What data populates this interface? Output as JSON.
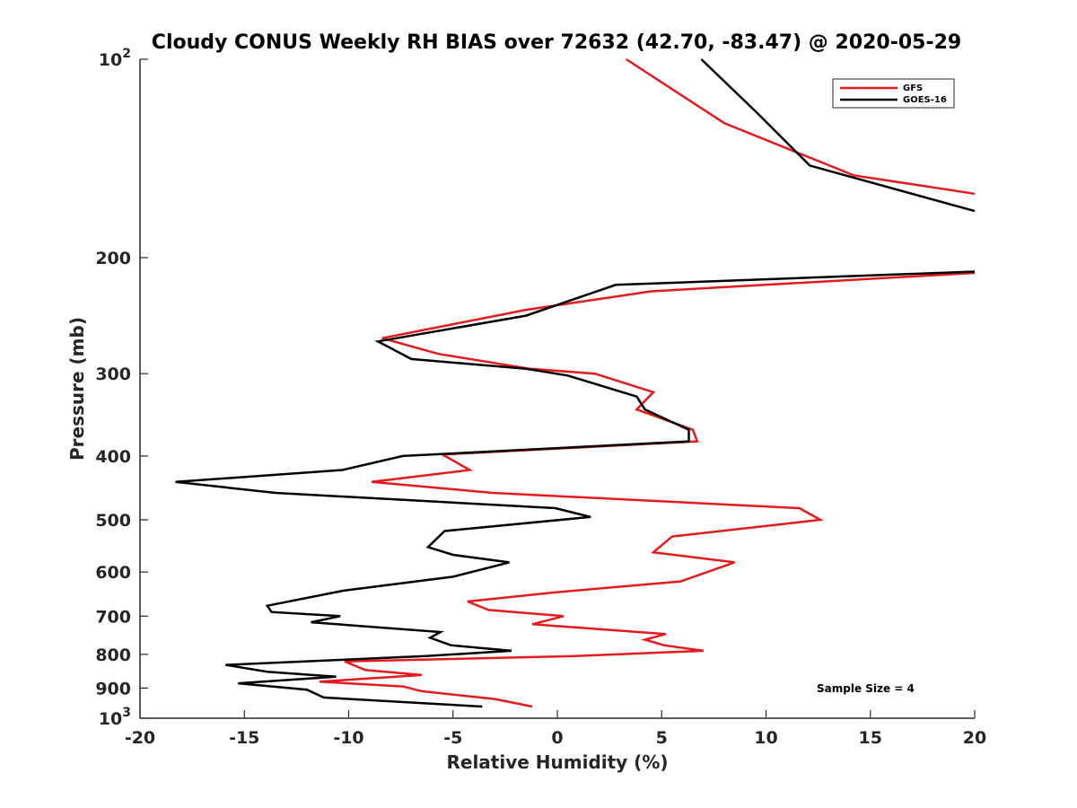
{
  "chart_data": {
    "type": "line",
    "title": "Cloudy CONUS Weekly RH BIAS over 72632 (42.70, -83.47) @ 2020-05-29",
    "xlabel": "Relative Humidity (%)",
    "ylabel": "Pressure (mb)",
    "xlim": [
      -20,
      20
    ],
    "ylim": [
      100,
      1000
    ],
    "y_scale": "log",
    "y_reversed": true,
    "grid": false,
    "legend_position": "top-right",
    "annotation": "Sample Size = 4",
    "x_ticks": [
      {
        "value": -20,
        "label": "-20"
      },
      {
        "value": -15,
        "label": "-15"
      },
      {
        "value": -10,
        "label": "-10"
      },
      {
        "value": -5,
        "label": "-5"
      },
      {
        "value": 0,
        "label": "0"
      },
      {
        "value": 5,
        "label": "5"
      },
      {
        "value": 10,
        "label": "10"
      },
      {
        "value": 15,
        "label": "15"
      },
      {
        "value": 20,
        "label": "20"
      }
    ],
    "y_ticks": [
      {
        "value": 100,
        "base": "10",
        "exp": "2"
      },
      {
        "value": 200,
        "base": "200",
        "exp": ""
      },
      {
        "value": 300,
        "base": "300",
        "exp": ""
      },
      {
        "value": 400,
        "base": "400",
        "exp": ""
      },
      {
        "value": 500,
        "base": "500",
        "exp": ""
      },
      {
        "value": 600,
        "base": "600",
        "exp": ""
      },
      {
        "value": 700,
        "base": "700",
        "exp": ""
      },
      {
        "value": 800,
        "base": "800",
        "exp": ""
      },
      {
        "value": 900,
        "base": "900",
        "exp": ""
      },
      {
        "value": 1000,
        "base": "10",
        "exp": "3"
      }
    ],
    "series": [
      {
        "name": "GFS",
        "color": "#e41a1c",
        "segments": [
          [
            [
              3.3,
              100
            ],
            [
              8.0,
              125
            ],
            [
              14.2,
              150
            ],
            [
              20.0,
              160
            ]
          ],
          [
            [
              20.0,
              211
            ],
            [
              4.5,
              225
            ],
            [
              -1.5,
              240
            ],
            [
              -8.4,
              265
            ],
            [
              -5.7,
              280
            ],
            [
              -1.3,
              295
            ],
            [
              1.8,
              300
            ],
            [
              4.6,
              320
            ],
            [
              3.8,
              340
            ],
            [
              6.5,
              365
            ],
            [
              6.7,
              380
            ],
            [
              -5.5,
              398
            ],
            [
              -4.2,
              420
            ],
            [
              -8.9,
              438
            ],
            [
              -3.1,
              455
            ],
            [
              11.6,
              480
            ],
            [
              12.6,
              500
            ],
            [
              5.5,
              530
            ],
            [
              4.6,
              560
            ],
            [
              8.5,
              580
            ],
            [
              5.9,
              620
            ],
            [
              -0.3,
              645
            ],
            [
              -4.3,
              665
            ],
            [
              -3.3,
              685
            ],
            [
              0.3,
              700
            ],
            [
              -1.2,
              720
            ],
            [
              5.2,
              745
            ],
            [
              4.2,
              760
            ],
            [
              5.1,
              775
            ],
            [
              7.0,
              790
            ],
            [
              0.7,
              805
            ],
            [
              -10.2,
              820
            ],
            [
              -9.2,
              845
            ],
            [
              -6.5,
              860
            ],
            [
              -11.4,
              880
            ],
            [
              -7.4,
              895
            ],
            [
              -6.5,
              910
            ],
            [
              -3.0,
              935
            ],
            [
              -1.2,
              960
            ]
          ]
        ]
      },
      {
        "name": "GOES-16",
        "color": "#000000",
        "segments": [
          [
            [
              6.9,
              100
            ],
            [
              9.5,
              120
            ],
            [
              12.1,
              145
            ],
            [
              20.0,
              170
            ]
          ],
          [
            [
              20.0,
              210
            ],
            [
              2.8,
              220
            ],
            [
              -1.5,
              245
            ],
            [
              -8.6,
              268
            ],
            [
              -7.0,
              285
            ],
            [
              -1.5,
              295
            ],
            [
              0.5,
              302
            ],
            [
              3.8,
              325
            ],
            [
              4.2,
              340
            ],
            [
              6.3,
              365
            ],
            [
              6.3,
              380
            ],
            [
              -7.4,
              400
            ],
            [
              -10.3,
              420
            ],
            [
              -18.3,
              438
            ],
            [
              -13.5,
              455
            ],
            [
              -0.1,
              480
            ],
            [
              1.6,
              495
            ],
            [
              -5.4,
              520
            ],
            [
              -6.2,
              550
            ],
            [
              -5.0,
              565
            ],
            [
              -2.3,
              580
            ],
            [
              -5.0,
              610
            ],
            [
              -10.2,
              640
            ],
            [
              -13.9,
              675
            ],
            [
              -13.7,
              690
            ],
            [
              -10.4,
              700
            ],
            [
              -11.8,
              715
            ],
            [
              -5.6,
              740
            ],
            [
              -6.1,
              755
            ],
            [
              -5.1,
              775
            ],
            [
              -2.2,
              790
            ],
            [
              -6.4,
              805
            ],
            [
              -15.9,
              830
            ],
            [
              -13.9,
              850
            ],
            [
              -10.6,
              865
            ],
            [
              -15.3,
              885
            ],
            [
              -12.0,
              905
            ],
            [
              -11.2,
              930
            ],
            [
              -3.6,
              960
            ]
          ]
        ]
      }
    ]
  }
}
